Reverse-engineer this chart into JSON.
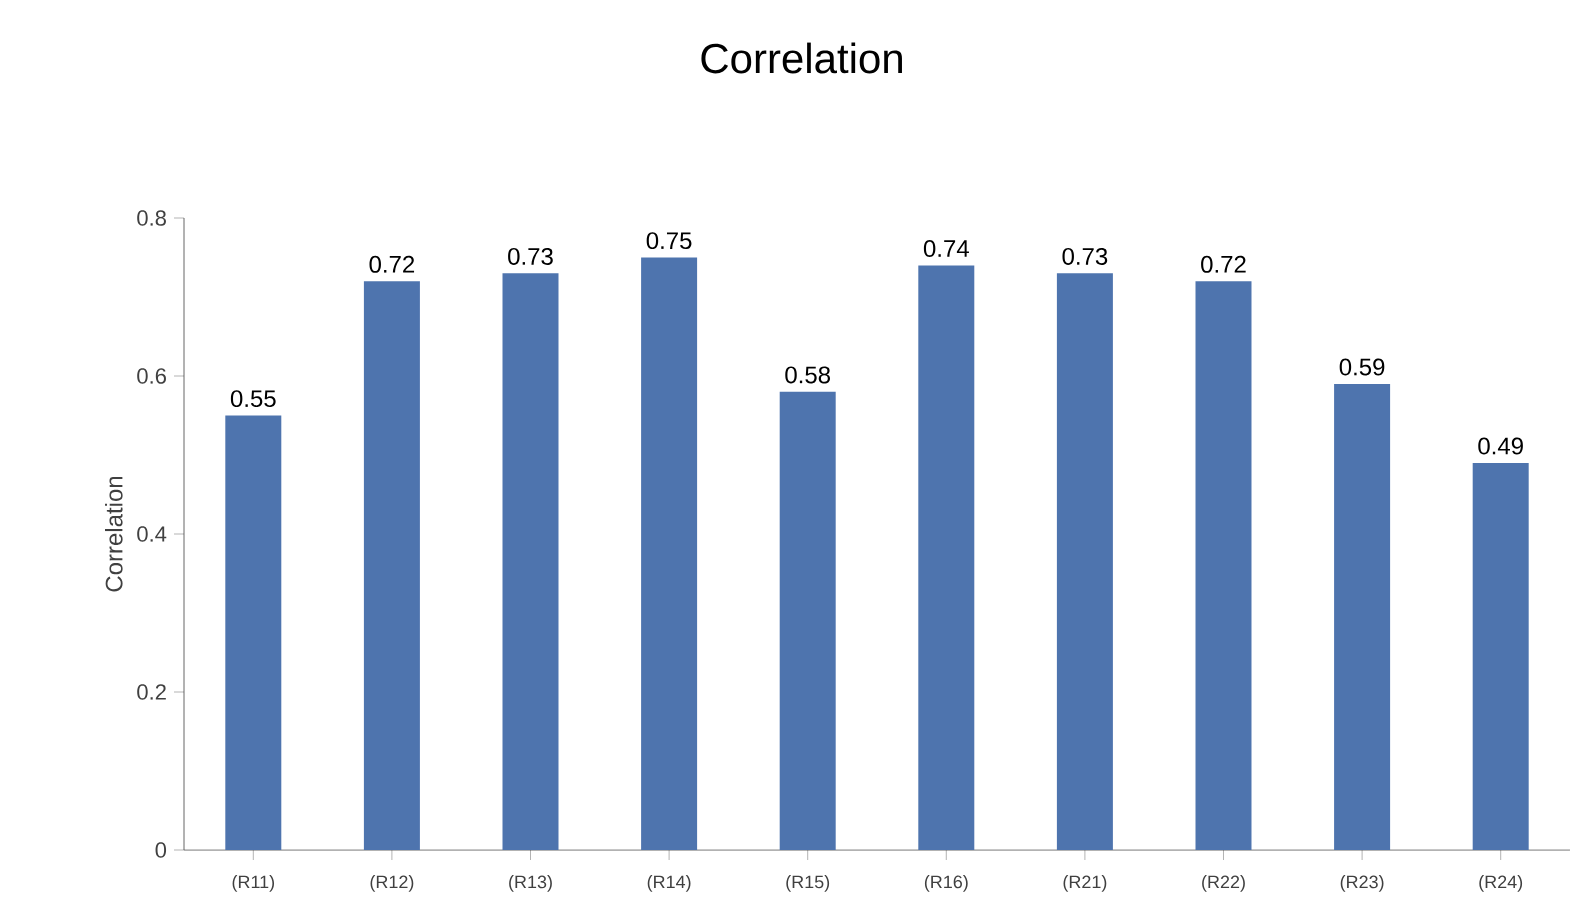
{
  "chart_data": {
    "type": "bar",
    "title": "Correlation",
    "ylabel": "Correlation",
    "categories": [
      "(R11)",
      "(R12)",
      "(R13)",
      "(R14)",
      "(R15)",
      "(R16)",
      "(R21)",
      "(R22)",
      "(R23)",
      "(R24)"
    ],
    "values": [
      0.55,
      0.72,
      0.73,
      0.75,
      0.58,
      0.74,
      0.73,
      0.72,
      0.59,
      0.49
    ],
    "color": "#4e74ae",
    "ylim": [
      0,
      0.8
    ],
    "yticks": [
      0,
      0.2,
      0.4,
      0.6,
      0.8
    ],
    "data_labels": true
  }
}
